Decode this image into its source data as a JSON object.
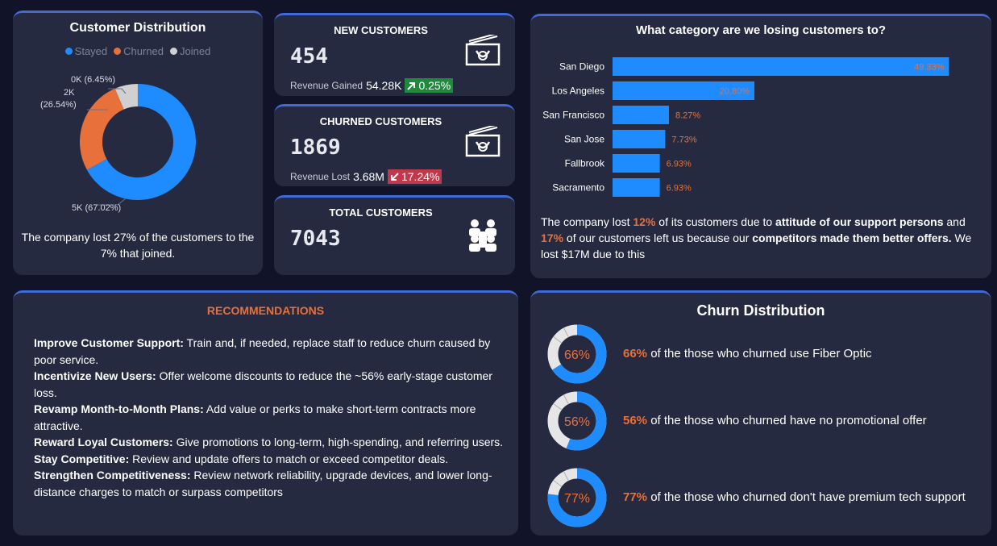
{
  "colors": {
    "background": "#111428",
    "card": "#252a40",
    "accent_border": "#4169d8",
    "stayed": "#1e8cff",
    "churned": "#e8703a",
    "joined": "#d0d0d0",
    "bar": "#1e8cff",
    "bar_label": "#e8703a",
    "positive": "#1f8a3c",
    "negative": "#c0384b"
  },
  "customer_distribution": {
    "title": "Customer Distribution",
    "legend": [
      {
        "label": "Stayed",
        "color": "#1e8cff"
      },
      {
        "label": "Churned",
        "color": "#e8703a"
      },
      {
        "label": "Joined",
        "color": "#d0d0d0"
      }
    ],
    "labels": {
      "stayed": "5K (67.02%)",
      "churned_a": "2K",
      "churned_b": "(26.54%)",
      "joined": "0K (6.45%)"
    },
    "caption": "The company lost 27% of the customers to the 7% that joined."
  },
  "kpis": {
    "new": {
      "title": "NEW CUSTOMERS",
      "value": "454",
      "sub_label": "Revenue Gained",
      "amount": "54.28K",
      "change": "0.25%",
      "direction": "up",
      "icon": "money-icon"
    },
    "churned": {
      "title": "CHURNED CUSTOMERS",
      "value": "1869",
      "sub_label": "Revenue Lost",
      "amount": "3.68M",
      "change": "17.24%",
      "direction": "down",
      "icon": "money-icon"
    },
    "total": {
      "title": "TOTAL CUSTOMERS",
      "value": "7043",
      "icon": "people-icon"
    }
  },
  "category": {
    "title": "What category are we losing customers to?",
    "caption": {
      "p1": "The company lost ",
      "v1": "12%",
      "p2": " of its customers due to ",
      "b1": "attitude of our support persons",
      "p3": " and ",
      "v2": "17%",
      "p4": " of our customers left us because our ",
      "b2": "competitors made them better offers.",
      "p5": " We lost $17M due to this"
    }
  },
  "chart_data": [
    {
      "type": "pie",
      "title": "Customer Distribution",
      "categories": [
        "Stayed",
        "Churned",
        "Joined"
      ],
      "values": [
        67.02,
        26.54,
        6.45
      ],
      "value_labels": [
        "5K",
        "2K",
        "0K"
      ]
    },
    {
      "type": "bar",
      "title": "What category are we losing customers to?",
      "categories": [
        "San Diego",
        "Los Angeles",
        "San Francisco",
        "San Jose",
        "Fallbrook",
        "Sacramento"
      ],
      "values": [
        49.33,
        20.8,
        8.27,
        7.73,
        6.93,
        6.93
      ],
      "value_labels": [
        "49.33%",
        "20.80%",
        "8.27%",
        "7.73%",
        "6.93%",
        "6.93%"
      ],
      "orientation": "horizontal",
      "xlim": [
        0,
        52
      ]
    },
    {
      "type": "pie",
      "title": "Churn Distribution",
      "categories": [
        "Fiber Optic",
        "No promotional offer",
        "No premium tech support"
      ],
      "values": [
        66,
        56,
        77
      ]
    }
  ],
  "recommendations": {
    "title": "RECOMMENDATIONS",
    "items": [
      {
        "head": "Improve Customer Support:",
        "body": " Train and, if needed, replace staff to reduce churn caused by poor service."
      },
      {
        "head": "Incentivize New Users:",
        "body": " Offer welcome discounts to reduce the ~56% early-stage customer loss."
      },
      {
        "head": "Revamp Month-to-Month Plans:",
        "body": " Add value or perks to make short-term contracts more attractive."
      },
      {
        "head": "Reward Loyal Customers:",
        "body": " Give promotions to long-term, high-spending, and referring users."
      },
      {
        "head": "Stay Competitive:",
        "body": " Review and update offers to match or exceed competitor deals."
      },
      {
        "head": "Strengthen Competitiveness:",
        "body": " Review network reliability, upgrade devices, and lower long-distance charges to match or surpass competitors"
      }
    ]
  },
  "churn_distribution": {
    "title": "Churn Distribution",
    "rows": [
      {
        "pct_label": "66%",
        "value": 66,
        "text": " of the those who churned use Fiber Optic"
      },
      {
        "pct_label": "56%",
        "value": 56,
        "text": " of the those who churned have no promotional offer"
      },
      {
        "pct_label": "77%",
        "value": 77,
        "text": " of the those who churned don't have premium tech support"
      }
    ]
  }
}
